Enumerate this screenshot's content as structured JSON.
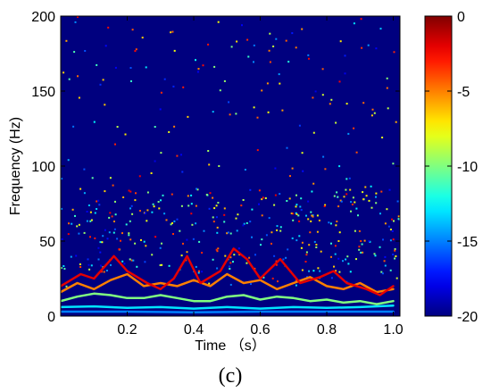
{
  "chart_data": {
    "type": "heatmap",
    "title": "",
    "xlabel": "Time （s）",
    "ylabel": "Frequency (Hz)",
    "xlim": [
      0.0,
      1.02
    ],
    "ylim": [
      0,
      200
    ],
    "x_ticks": [
      "0.2",
      "0.4",
      "0.6",
      "0.8",
      "1.0"
    ],
    "y_ticks": [
      "0",
      "50",
      "100",
      "150",
      "200"
    ],
    "colorbar": {
      "range": [
        -20,
        0
      ],
      "ticks": [
        "0",
        "-5",
        "-10",
        "-15",
        "-20"
      ],
      "colormap": "jet"
    },
    "background_level": -20,
    "ridges": [
      {
        "level": -13,
        "points": [
          [
            0.0,
            6
          ],
          [
            0.1,
            6.5
          ],
          [
            0.2,
            5.5
          ],
          [
            0.3,
            6
          ],
          [
            0.4,
            5
          ],
          [
            0.5,
            6
          ],
          [
            0.6,
            5
          ],
          [
            0.7,
            6
          ],
          [
            0.8,
            5.5
          ],
          [
            0.9,
            6
          ],
          [
            1.0,
            7
          ]
        ]
      },
      {
        "level": -15,
        "points": [
          [
            0.0,
            3
          ],
          [
            0.2,
            3
          ],
          [
            0.4,
            2.5
          ],
          [
            0.6,
            3
          ],
          [
            0.8,
            3
          ],
          [
            1.0,
            3
          ]
        ]
      },
      {
        "level": -10,
        "points": [
          [
            0.0,
            10
          ],
          [
            0.05,
            13
          ],
          [
            0.1,
            15
          ],
          [
            0.15,
            14
          ],
          [
            0.2,
            12
          ],
          [
            0.25,
            12
          ],
          [
            0.3,
            14
          ],
          [
            0.35,
            12
          ],
          [
            0.4,
            10
          ],
          [
            0.45,
            10
          ],
          [
            0.5,
            13
          ],
          [
            0.55,
            14
          ],
          [
            0.6,
            11
          ],
          [
            0.65,
            13
          ],
          [
            0.7,
            12
          ],
          [
            0.75,
            10
          ],
          [
            0.8,
            11
          ],
          [
            0.85,
            9
          ],
          [
            0.9,
            10
          ],
          [
            0.95,
            8
          ],
          [
            1.0,
            10
          ]
        ]
      },
      {
        "level": -5,
        "points": [
          [
            0.0,
            16
          ],
          [
            0.05,
            22
          ],
          [
            0.1,
            18
          ],
          [
            0.15,
            24
          ],
          [
            0.2,
            28
          ],
          [
            0.25,
            20
          ],
          [
            0.3,
            22
          ],
          [
            0.35,
            20
          ],
          [
            0.4,
            24
          ],
          [
            0.45,
            20
          ],
          [
            0.5,
            28
          ],
          [
            0.55,
            22
          ],
          [
            0.6,
            24
          ],
          [
            0.65,
            18
          ],
          [
            0.7,
            22
          ],
          [
            0.75,
            26
          ],
          [
            0.8,
            20
          ],
          [
            0.85,
            18
          ],
          [
            0.9,
            22
          ],
          [
            0.95,
            16
          ],
          [
            1.0,
            18
          ]
        ]
      },
      {
        "level": -2,
        "points": [
          [
            0.0,
            20
          ],
          [
            0.06,
            28
          ],
          [
            0.1,
            25
          ],
          [
            0.16,
            40
          ],
          [
            0.2,
            30
          ],
          [
            0.26,
            22
          ],
          [
            0.3,
            18
          ],
          [
            0.34,
            25
          ],
          [
            0.38,
            40
          ],
          [
            0.42,
            22
          ],
          [
            0.48,
            30
          ],
          [
            0.52,
            45
          ],
          [
            0.56,
            38
          ],
          [
            0.6,
            25
          ],
          [
            0.66,
            38
          ],
          [
            0.72,
            22
          ],
          [
            0.78,
            26
          ],
          [
            0.82,
            30
          ],
          [
            0.86,
            22
          ],
          [
            0.92,
            18
          ],
          [
            0.96,
            14
          ],
          [
            1.0,
            20
          ]
        ]
      }
    ],
    "scatter_density": "sparse above 40 Hz, denser between 30 and 80 Hz"
  },
  "panel_label": "(c)"
}
